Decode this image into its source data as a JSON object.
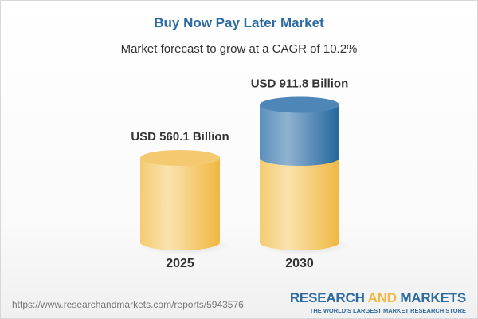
{
  "title": "Buy Now Pay Later Market",
  "subtitle": "Market forecast to grow at a CAGR of 10.2%",
  "chart_data": {
    "type": "bar",
    "style": "3d-cylinder",
    "categories": [
      "2025",
      "2030"
    ],
    "values": [
      560.1,
      911.8
    ],
    "data_labels": [
      "USD 560.1 Billion",
      "USD 911.8 Billion"
    ],
    "unit": "USD Billion",
    "cagr": "10.2%",
    "colors": {
      "base": "#f3c35a",
      "growth": "#3f7bb0"
    }
  },
  "footer": {
    "url": "https://www.researchandmarkets.com/reports/5943576",
    "logo_word1": "RESEARCH",
    "logo_word2": "AND",
    "logo_word3": "MARKETS",
    "logo_tagline": "THE WORLD'S LARGEST MARKET RESEARCH STORE"
  }
}
